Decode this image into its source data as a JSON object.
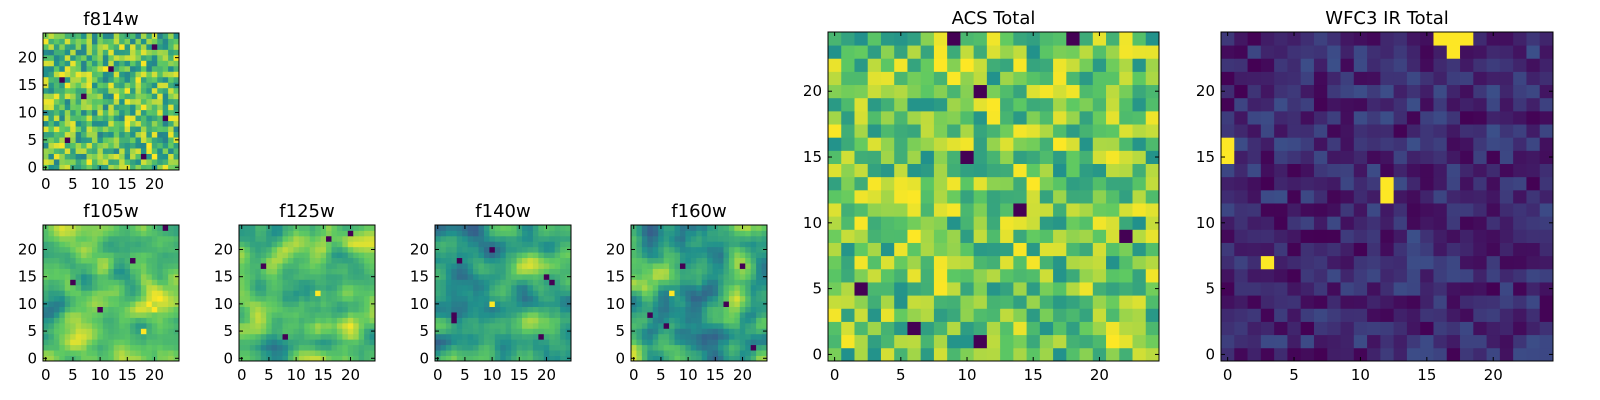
{
  "colormap": {
    "name": "viridis",
    "stops": [
      "#440154",
      "#3b528b",
      "#21918c",
      "#5ec962",
      "#fde725"
    ]
  },
  "chart_data": [
    {
      "id": "f814w",
      "type": "heatmap",
      "title": "f814w",
      "grid": 25,
      "xlim": [
        0,
        24
      ],
      "ylim": [
        0,
        24
      ],
      "xticks": [
        "0",
        "5",
        "10",
        "15",
        "20"
      ],
      "yticks": [
        "0",
        "5",
        "10",
        "15",
        "20"
      ],
      "seed": 814,
      "mean": 0.72,
      "spread": 0.28,
      "smooth": 0,
      "dark_cells": [
        [
          4,
          5
        ],
        [
          18,
          2
        ],
        [
          12,
          18
        ],
        [
          20,
          22
        ],
        [
          7,
          13
        ],
        [
          22,
          9
        ],
        [
          3,
          16
        ]
      ],
      "bright_cells": []
    },
    {
      "id": "f105w",
      "type": "heatmap",
      "title": "f105w",
      "grid": 25,
      "xlim": [
        0,
        24
      ],
      "ylim": [
        0,
        24
      ],
      "xticks": [
        "0",
        "5",
        "10",
        "15",
        "20"
      ],
      "yticks": [
        "0",
        "5",
        "10",
        "15",
        "20"
      ],
      "seed": 105,
      "mean": 0.7,
      "spread": 0.3,
      "smooth": 2,
      "dark_cells": [
        [
          5,
          14
        ],
        [
          16,
          18
        ],
        [
          22,
          24
        ],
        [
          10,
          9
        ]
      ],
      "bright_cells": [
        [
          19,
          10
        ],
        [
          20,
          9
        ],
        [
          18,
          5
        ]
      ]
    },
    {
      "id": "f125w",
      "type": "heatmap",
      "title": "f125w",
      "grid": 25,
      "xlim": [
        0,
        24
      ],
      "ylim": [
        0,
        24
      ],
      "xticks": [
        "0",
        "5",
        "10",
        "15",
        "20"
      ],
      "yticks": [
        "0",
        "5",
        "10",
        "15",
        "20"
      ],
      "seed": 125,
      "mean": 0.68,
      "spread": 0.3,
      "smooth": 2,
      "dark_cells": [
        [
          20,
          23
        ],
        [
          4,
          17
        ],
        [
          8,
          4
        ],
        [
          16,
          22
        ]
      ],
      "bright_cells": [
        [
          14,
          12
        ]
      ]
    },
    {
      "id": "f140w",
      "type": "heatmap",
      "title": "f140w",
      "grid": 25,
      "xlim": [
        0,
        24
      ],
      "ylim": [
        0,
        24
      ],
      "xticks": [
        "0",
        "5",
        "10",
        "15",
        "20"
      ],
      "yticks": [
        "0",
        "5",
        "10",
        "15",
        "20"
      ],
      "seed": 140,
      "mean": 0.62,
      "spread": 0.32,
      "smooth": 2,
      "dark_cells": [
        [
          20,
          15
        ],
        [
          21,
          14
        ],
        [
          3,
          8
        ],
        [
          3,
          7
        ],
        [
          19,
          4
        ],
        [
          10,
          20
        ],
        [
          4,
          18
        ]
      ],
      "bright_cells": [
        [
          10,
          10
        ]
      ]
    },
    {
      "id": "f160w",
      "type": "heatmap",
      "title": "f160w",
      "grid": 25,
      "xlim": [
        0,
        24
      ],
      "ylim": [
        0,
        24
      ],
      "xticks": [
        "0",
        "5",
        "10",
        "15",
        "20"
      ],
      "yticks": [
        "0",
        "5",
        "10",
        "15",
        "20"
      ],
      "seed": 160,
      "mean": 0.62,
      "spread": 0.32,
      "smooth": 2,
      "dark_cells": [
        [
          3,
          8
        ],
        [
          9,
          17
        ],
        [
          17,
          10
        ],
        [
          20,
          17
        ],
        [
          22,
          2
        ],
        [
          6,
          6
        ]
      ],
      "bright_cells": [
        [
          7,
          12
        ]
      ]
    },
    {
      "id": "acs-total",
      "type": "heatmap",
      "title": "ACS Total",
      "grid": 25,
      "xlim": [
        0,
        24
      ],
      "ylim": [
        0,
        24
      ],
      "xticks": [
        "0",
        "5",
        "10",
        "15",
        "20"
      ],
      "yticks": [
        "0",
        "5",
        "10",
        "15",
        "20"
      ],
      "seed": 901,
      "mean": 0.75,
      "spread": 0.25,
      "smooth": 0,
      "dark_cells": [
        [
          9,
          24
        ],
        [
          11,
          20
        ],
        [
          14,
          11
        ],
        [
          2,
          5
        ],
        [
          11,
          1
        ],
        [
          22,
          9
        ],
        [
          10,
          15
        ],
        [
          6,
          2
        ],
        [
          18,
          24
        ]
      ],
      "bright_cells": [
        [
          8,
          22
        ],
        [
          15,
          13
        ],
        [
          21,
          1
        ]
      ]
    },
    {
      "id": "wfc3-ir-total",
      "type": "heatmap",
      "title": "WFC3 IR Total",
      "grid": 25,
      "xlim": [
        0,
        24
      ],
      "ylim": [
        0,
        24
      ],
      "xticks": [
        "0",
        "5",
        "10",
        "15",
        "20"
      ],
      "yticks": [
        "0",
        "5",
        "10",
        "15",
        "20"
      ],
      "seed": 902,
      "mean": 0.12,
      "spread": 0.12,
      "smooth": 0,
      "dark_cells": [],
      "bright_cells": [
        [
          16,
          24
        ],
        [
          17,
          24
        ],
        [
          18,
          24
        ],
        [
          17,
          23
        ],
        [
          0,
          16
        ],
        [
          0,
          15
        ],
        [
          12,
          13
        ],
        [
          12,
          12
        ],
        [
          3,
          7
        ]
      ]
    }
  ]
}
